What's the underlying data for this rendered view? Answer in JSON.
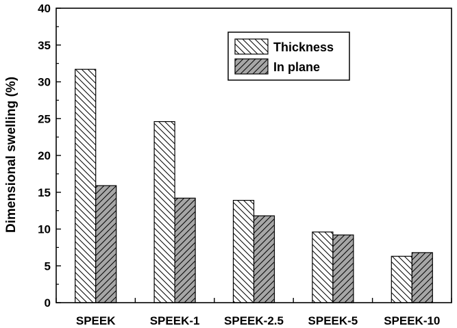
{
  "chart_data": {
    "type": "bar",
    "categories": [
      "SPEEK",
      "SPEEK-1",
      "SPEEK-2.5",
      "SPEEK-5",
      "SPEEK-10"
    ],
    "series": [
      {
        "name": "Thickness",
        "values": [
          31.7,
          24.6,
          13.9,
          9.6,
          6.3
        ],
        "pattern": "hatch-back",
        "fill": "#ffffff"
      },
      {
        "name": "In plane",
        "values": [
          15.9,
          14.2,
          11.8,
          9.2,
          6.8
        ],
        "pattern": "hatch-forward",
        "fill": "#a6a6a6"
      }
    ],
    "xlabel": "",
    "ylabel": "Dimensional swelling (%)",
    "ylim": [
      0,
      40
    ],
    "yticks": [
      0,
      5,
      10,
      15,
      20,
      25,
      30,
      35,
      40
    ],
    "grid": false,
    "legend_position": "top-right"
  }
}
